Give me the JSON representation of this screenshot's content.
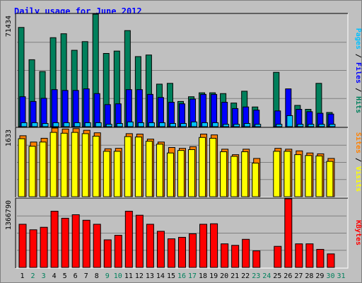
{
  "title": "Daily usage for June 2012",
  "colors": {
    "hits": "#00805c",
    "files": "#0000ff",
    "pages": "#00c0ff",
    "visits": "#ffff00",
    "sites": "#ff8000",
    "kbytes": "#ff0000",
    "weekday_label": "#000000",
    "weekend_label": "#00805c",
    "plot_background": "#c0c0c0",
    "gridline": "#808080"
  },
  "chart_data": [
    {
      "type": "bar",
      "panel": "hits-files-pages",
      "ymax_label": "71434",
      "ylim": [
        0,
        71434
      ],
      "legend": [
        {
          "text": "Hits",
          "color": "#00805c"
        },
        {
          "text": "Files",
          "color": "#0000ff"
        },
        {
          "text": "Pages",
          "color": "#00c0ff"
        }
      ],
      "categories": [
        "1",
        "2",
        "3",
        "4",
        "5",
        "6",
        "7",
        "8",
        "9",
        "10",
        "11",
        "12",
        "13",
        "14",
        "15",
        "16",
        "17",
        "18",
        "19",
        "20",
        "21",
        "22",
        "23",
        "24",
        "25",
        "26",
        "27",
        "28",
        "29",
        "30",
        "31"
      ],
      "series": [
        {
          "name": "Hits",
          "values": [
            63000,
            42500,
            35000,
            56500,
            59000,
            48500,
            54000,
            71434,
            46500,
            48000,
            61000,
            44500,
            45500,
            27000,
            27500,
            16000,
            19000,
            21500,
            21500,
            21000,
            15000,
            22500,
            12500,
            0,
            34500,
            0,
            13500,
            11000,
            27500,
            9000,
            0
          ]
        },
        {
          "name": "Files",
          "values": [
            19000,
            16000,
            18000,
            23500,
            23000,
            23000,
            24000,
            21000,
            14000,
            14500,
            23500,
            23500,
            20500,
            18500,
            15500,
            14500,
            17500,
            20500,
            20500,
            15500,
            11500,
            12500,
            10500,
            0,
            10000,
            24000,
            11000,
            9500,
            8500,
            8000,
            0
          ]
        },
        {
          "name": "Pages",
          "values": [
            2500,
            2500,
            2000,
            2500,
            2500,
            2500,
            2500,
            2500,
            1500,
            2000,
            3000,
            2500,
            2500,
            2500,
            2000,
            2000,
            3000,
            2500,
            2500,
            1500,
            1500,
            2000,
            1500,
            0,
            1500,
            7000,
            1500,
            1500,
            1500,
            1500,
            0
          ]
        }
      ]
    },
    {
      "type": "bar",
      "panel": "visits-sites",
      "ymax_label": "1633",
      "ylim": [
        0,
        1633
      ],
      "legend": [
        {
          "text": "Visits",
          "color": "#ffff00"
        },
        {
          "text": "Sites",
          "color": "#ff8000"
        }
      ],
      "categories": [
        "1",
        "2",
        "3",
        "4",
        "5",
        "6",
        "7",
        "8",
        "9",
        "10",
        "11",
        "12",
        "13",
        "14",
        "15",
        "16",
        "17",
        "18",
        "19",
        "20",
        "21",
        "22",
        "23",
        "24",
        "25",
        "26",
        "27",
        "28",
        "29",
        "30",
        "31"
      ],
      "series": [
        {
          "name": "Visits",
          "values": [
            1380,
            1200,
            1300,
            1530,
            1510,
            1530,
            1500,
            1440,
            1080,
            1080,
            1430,
            1420,
            1320,
            1250,
            1040,
            1100,
            1120,
            1410,
            1390,
            1070,
            960,
            1070,
            800,
            0,
            1080,
            1080,
            1000,
            980,
            970,
            840,
            0
          ]
        },
        {
          "name": "Sites",
          "values": [
            1450,
            1300,
            1390,
            1633,
            1610,
            1620,
            1580,
            1520,
            1140,
            1150,
            1500,
            1490,
            1370,
            1300,
            1170,
            1150,
            1190,
            1490,
            1470,
            1130,
            1000,
            1130,
            910,
            0,
            1150,
            1130,
            1090,
            1040,
            1020,
            910,
            0
          ]
        }
      ]
    },
    {
      "type": "bar",
      "panel": "kbytes",
      "ymax_label": "1366790",
      "ylim": [
        0,
        1366790
      ],
      "legend": [
        {
          "text": "KBytes",
          "color": "#ff0000"
        }
      ],
      "categories": [
        "1",
        "2",
        "3",
        "4",
        "5",
        "6",
        "7",
        "8",
        "9",
        "10",
        "11",
        "12",
        "13",
        "14",
        "15",
        "16",
        "17",
        "18",
        "19",
        "20",
        "21",
        "22",
        "23",
        "24",
        "25",
        "26",
        "27",
        "28",
        "29",
        "30",
        "31"
      ],
      "series": [
        {
          "name": "KBytes",
          "values": [
            860000,
            750000,
            800000,
            1120000,
            980000,
            1050000,
            940000,
            860000,
            550000,
            640000,
            1120000,
            1040000,
            860000,
            720000,
            570000,
            600000,
            670000,
            860000,
            870000,
            470000,
            440000,
            560000,
            330000,
            0,
            420000,
            1366790,
            470000,
            470000,
            360000,
            270000,
            0
          ]
        }
      ]
    }
  ],
  "x_axis": {
    "labels": [
      "1",
      "2",
      "3",
      "4",
      "5",
      "6",
      "7",
      "8",
      "9",
      "10",
      "11",
      "12",
      "13",
      "14",
      "15",
      "16",
      "17",
      "18",
      "19",
      "20",
      "21",
      "22",
      "23",
      "24",
      "25",
      "26",
      "27",
      "28",
      "29",
      "30",
      "31"
    ],
    "weekend_days": [
      "2",
      "3",
      "9",
      "10",
      "16",
      "17",
      "23",
      "24",
      "30",
      "31"
    ]
  }
}
